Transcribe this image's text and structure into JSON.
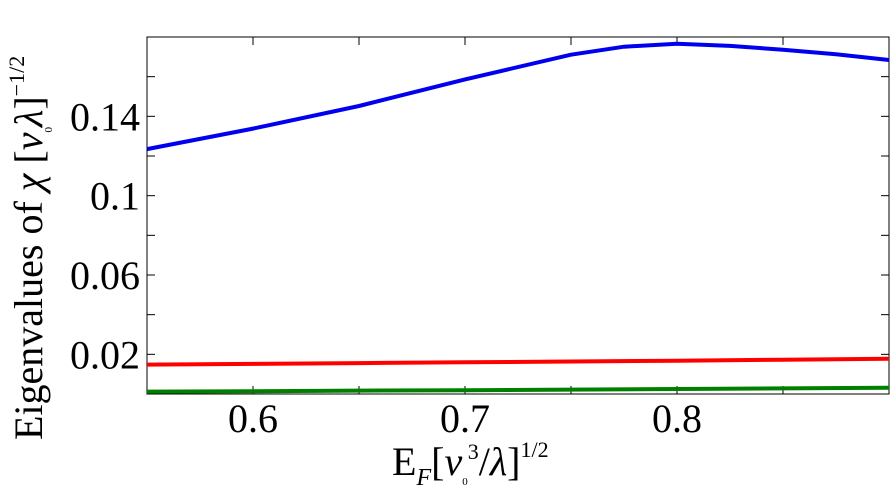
{
  "chart_data": {
    "type": "line",
    "title": "",
    "xlabel": {
      "base": "E",
      "sub": "F",
      "bracket_open": "[",
      "v": "v",
      "v_sub": "0",
      "v_sup": "3",
      "slash": "/",
      "lambda": "λ",
      "bracket_close": "]",
      "power": "1/2"
    },
    "ylabel": {
      "text": "Eigenvalues of ",
      "chi": "χ",
      "bracket_open": " [",
      "v": "v",
      "v_sub": "0",
      "lambda": "λ",
      "bracket_close": "]",
      "power": "−1/2"
    },
    "xlim": [
      0.55,
      0.9
    ],
    "ylim": [
      0.0,
      0.18
    ],
    "xticks": [
      0.6,
      0.7,
      0.8
    ],
    "xtick_labels": [
      "0.6",
      "0.7",
      "0.8"
    ],
    "yticks": [
      0.02,
      0.06,
      0.1,
      0.14
    ],
    "ytick_labels": [
      "0.02",
      "0.06",
      "0.1",
      "0.14"
    ],
    "grid": false,
    "legend": "none",
    "series": [
      {
        "color": "#0000ee",
        "x": [
          0.55,
          0.6,
          0.65,
          0.7,
          0.75,
          0.775,
          0.8,
          0.825,
          0.85,
          0.875,
          0.9
        ],
        "y": [
          0.1235,
          0.1338,
          0.1452,
          0.1586,
          0.1711,
          0.1751,
          0.1766,
          0.1755,
          0.1736,
          0.1713,
          0.1684
        ]
      },
      {
        "color": "#ff0000",
        "x": [
          0.55,
          0.6,
          0.65,
          0.7,
          0.75,
          0.8,
          0.85,
          0.9
        ],
        "y": [
          0.0148,
          0.0152,
          0.0156,
          0.016,
          0.0164,
          0.0168,
          0.0173,
          0.0178
        ]
      },
      {
        "color": "#008000",
        "x": [
          0.55,
          0.6,
          0.65,
          0.7,
          0.75,
          0.8,
          0.85,
          0.9
        ],
        "y": [
          0.0012,
          0.0014,
          0.0017,
          0.0019,
          0.0022,
          0.0025,
          0.0028,
          0.0032
        ]
      }
    ]
  }
}
